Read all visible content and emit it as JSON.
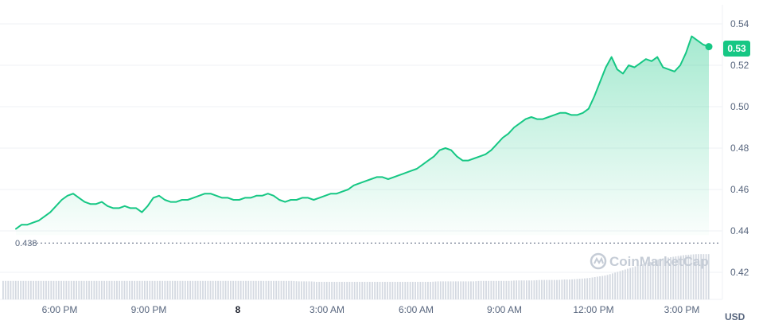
{
  "chart_data": {
    "type": "area",
    "currency": "USD",
    "ylim": [
      0.41,
      0.55
    ],
    "y_ticks": [
      "0.54",
      "0.52",
      "0.50",
      "0.48",
      "0.46",
      "0.44",
      "0.42"
    ],
    "x_ticks": [
      {
        "label": "6:00 PM",
        "bold": false
      },
      {
        "label": "9:00 PM",
        "bold": false
      },
      {
        "label": "8",
        "bold": true
      },
      {
        "label": "3:00 AM",
        "bold": false
      },
      {
        "label": "6:00 AM",
        "bold": false
      },
      {
        "label": "9:00 AM",
        "bold": false
      },
      {
        "label": "12:00 PM",
        "bold": false
      },
      {
        "label": "3:00 PM",
        "bold": false
      }
    ],
    "open_price": "0.438",
    "current_price": "0.53",
    "line_color": "#16c784",
    "watermark": "CoinMarketCap",
    "series": [
      {
        "values": [
          0.441,
          0.443,
          0.443,
          0.444,
          0.445,
          0.447,
          0.449,
          0.452,
          0.455,
          0.457,
          0.458,
          0.456,
          0.454,
          0.453,
          0.453,
          0.454,
          0.452,
          0.451,
          0.451,
          0.452,
          0.451,
          0.451,
          0.449,
          0.452,
          0.456,
          0.457,
          0.455,
          0.454,
          0.454,
          0.455,
          0.455,
          0.456,
          0.457,
          0.458,
          0.458,
          0.457,
          0.456,
          0.456,
          0.455,
          0.455,
          0.456,
          0.456,
          0.457,
          0.457,
          0.458,
          0.457,
          0.455,
          0.454,
          0.455,
          0.455,
          0.456,
          0.456,
          0.455,
          0.456,
          0.457,
          0.458,
          0.458,
          0.459,
          0.46,
          0.462,
          0.463,
          0.464,
          0.465,
          0.466,
          0.466,
          0.465,
          0.466,
          0.467,
          0.468,
          0.469,
          0.47,
          0.472,
          0.474,
          0.476,
          0.479,
          0.48,
          0.479,
          0.476,
          0.474,
          0.474,
          0.475,
          0.476,
          0.477,
          0.479,
          0.482,
          0.485,
          0.487,
          0.49,
          0.492,
          0.494,
          0.495,
          0.494,
          0.494,
          0.495,
          0.496,
          0.497,
          0.497,
          0.496,
          0.496,
          0.497,
          0.499,
          0.505,
          0.512,
          0.519,
          0.524,
          0.518,
          0.516,
          0.52,
          0.519,
          0.521,
          0.523,
          0.522,
          0.524,
          0.519,
          0.518,
          0.517,
          0.52,
          0.526,
          0.534,
          0.532,
          0.53,
          0.529
        ]
      }
    ],
    "volume": [
      0.4,
      0.4,
      0.4,
      0.4,
      0.4,
      0.4,
      0.4,
      0.4,
      0.4,
      0.4,
      0.4,
      0.4,
      0.4,
      0.4,
      0.4,
      0.4,
      0.4,
      0.4,
      0.4,
      0.4,
      0.4,
      0.4,
      0.4,
      0.4,
      0.4,
      0.4,
      0.4,
      0.4,
      0.4,
      0.4,
      0.4,
      0.4,
      0.4,
      0.4,
      0.4,
      0.4,
      0.4,
      0.4,
      0.4,
      0.4,
      0.4,
      0.4,
      0.4,
      0.4,
      0.4,
      0.4,
      0.4,
      0.4,
      0.4,
      0.39,
      0.39,
      0.39,
      0.38,
      0.38,
      0.38,
      0.38,
      0.38,
      0.38,
      0.38,
      0.38,
      0.38,
      0.38,
      0.38,
      0.38,
      0.38,
      0.38,
      0.38,
      0.38,
      0.38,
      0.38,
      0.38,
      0.38,
      0.39,
      0.39,
      0.39,
      0.39,
      0.39,
      0.39,
      0.39,
      0.4,
      0.4,
      0.4,
      0.4,
      0.4,
      0.4,
      0.41,
      0.41,
      0.41,
      0.41,
      0.42,
      0.42,
      0.42,
      0.42,
      0.43,
      0.43,
      0.44,
      0.45,
      0.46,
      0.48,
      0.5,
      0.52,
      0.56,
      0.6,
      0.64,
      0.68,
      0.72,
      0.76,
      0.8,
      0.84,
      0.88,
      0.9,
      0.92,
      0.94,
      0.96,
      0.97,
      0.98,
      0.98,
      0.98
    ]
  }
}
